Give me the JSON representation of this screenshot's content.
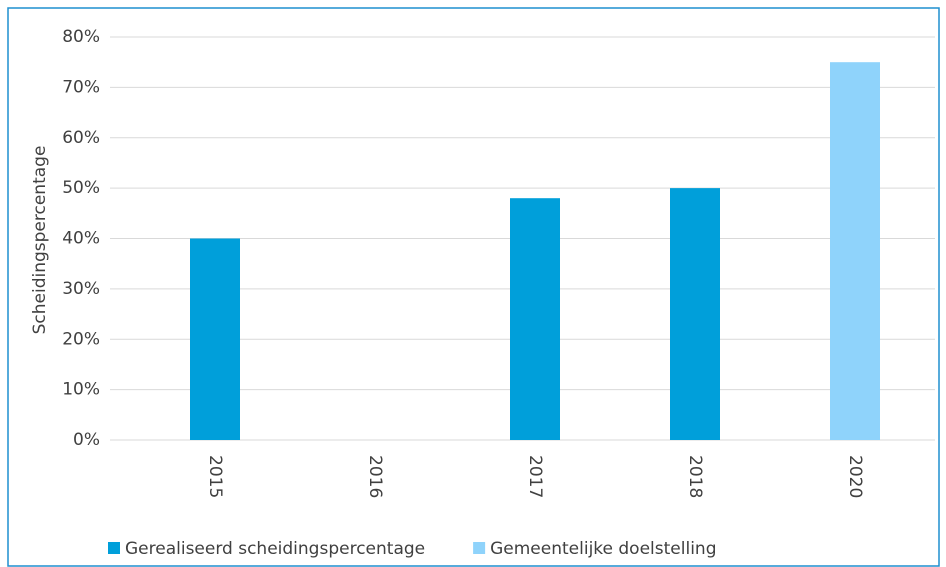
{
  "chart_data": {
    "type": "bar",
    "y_label": "Scheidingspercentage",
    "categories": [
      "2015",
      "2016",
      "2017",
      "2018",
      "2020"
    ],
    "series": [
      {
        "name": "Gerealiseerd scheidingspercentage",
        "color": "#009fda",
        "values": [
          40,
          null,
          48,
          50,
          null
        ]
      },
      {
        "name": "Gemeentelijke doelstelling",
        "color": "#8fd3fb",
        "values": [
          null,
          null,
          null,
          null,
          75
        ]
      }
    ],
    "ylim": [
      0,
      80
    ],
    "yticks": [
      {
        "value": 0,
        "label": "0%"
      },
      {
        "value": 10,
        "label": "10%"
      },
      {
        "value": 20,
        "label": "20%"
      },
      {
        "value": 30,
        "label": "30%"
      },
      {
        "value": 40,
        "label": "40%"
      },
      {
        "value": 50,
        "label": "50%"
      },
      {
        "value": 60,
        "label": "60%"
      },
      {
        "value": 70,
        "label": "70%"
      },
      {
        "value": 80,
        "label": "80%"
      }
    ],
    "grid": true,
    "legend": "bottom"
  }
}
